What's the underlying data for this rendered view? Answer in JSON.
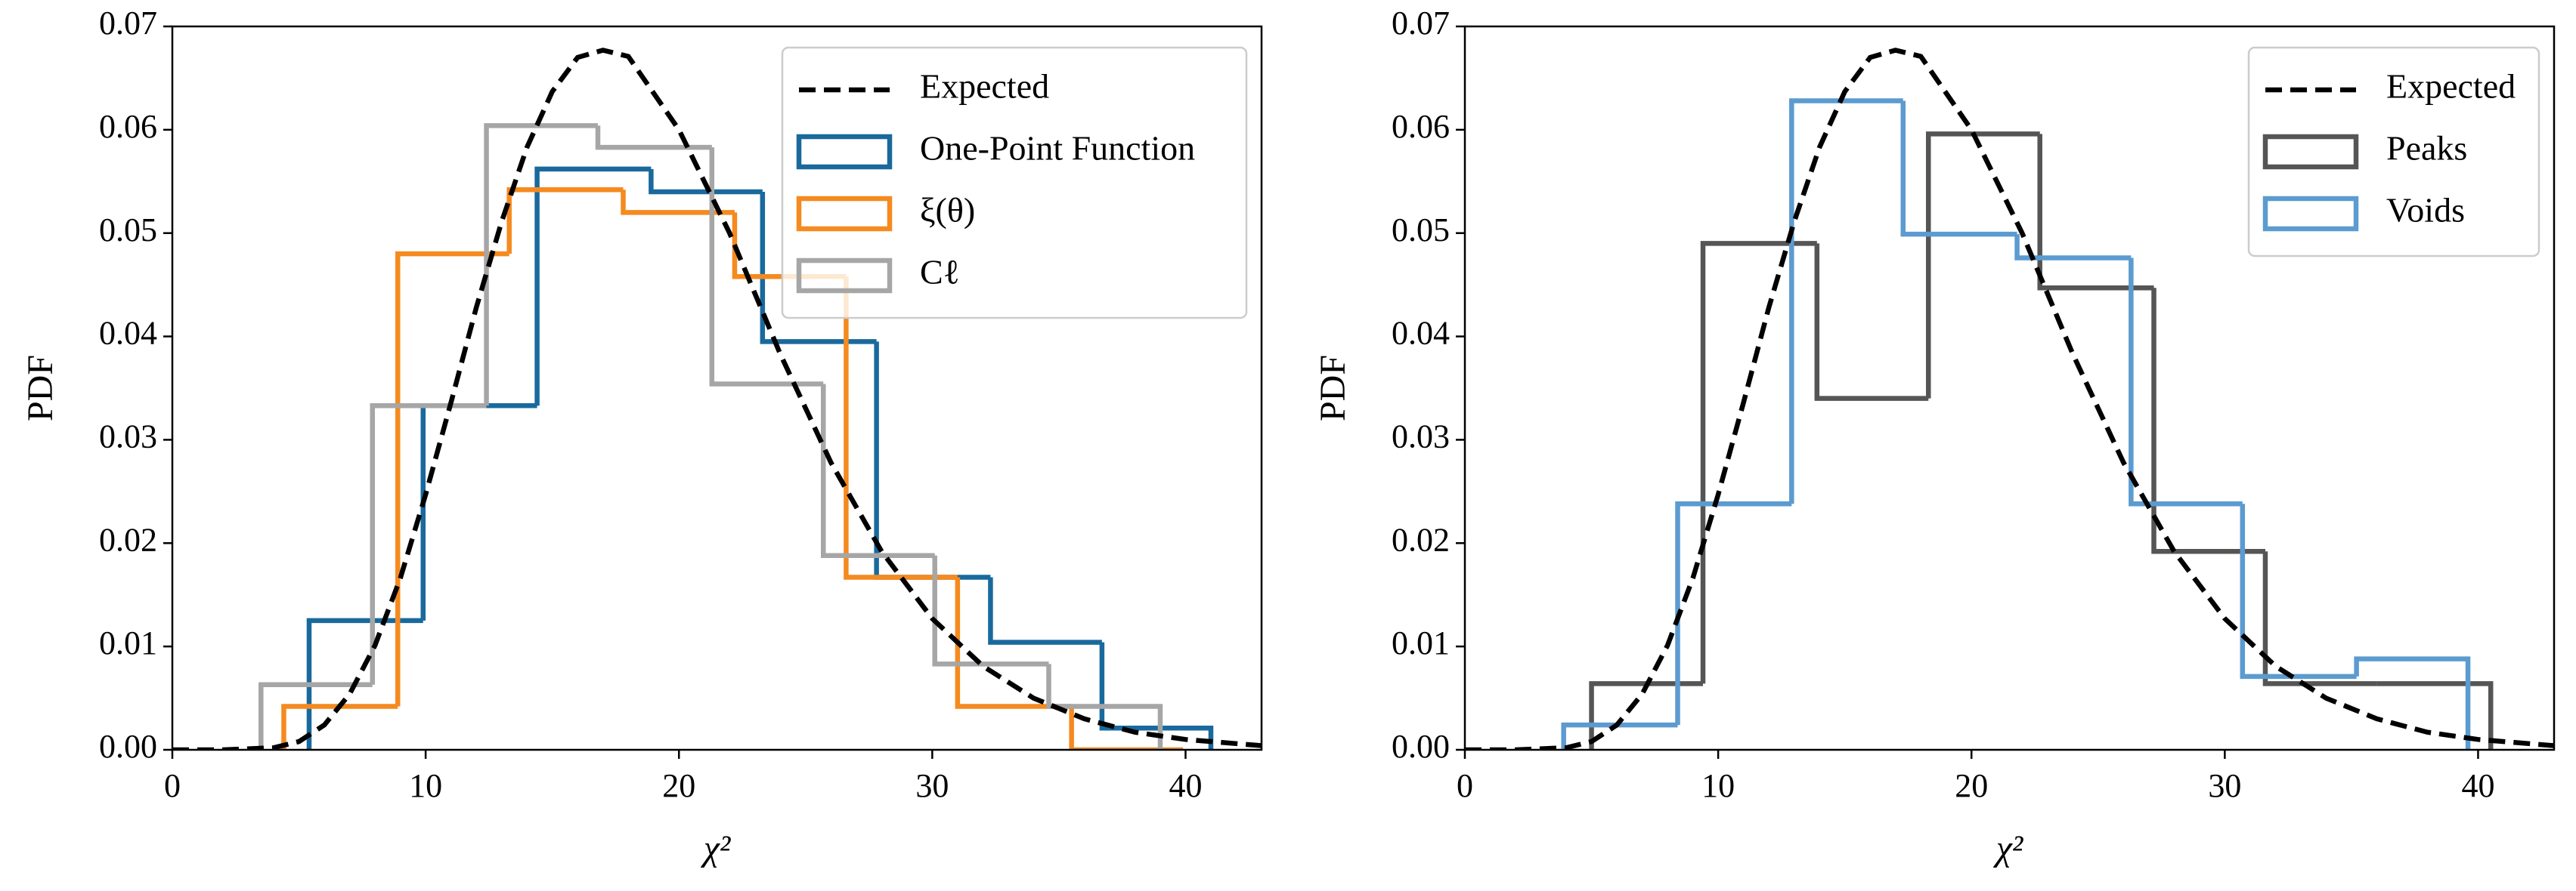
{
  "chart_data": [
    {
      "type": "histogram",
      "xlabel": "χ²",
      "ylabel": "PDF",
      "xlim": [
        0,
        43
      ],
      "ylim": [
        0,
        0.07
      ],
      "xticks": [
        0,
        10,
        20,
        30,
        40
      ],
      "yticks": [
        {
          "value": 0,
          "label": "0.00"
        },
        {
          "value": 0.01,
          "label": "0.01"
        },
        {
          "value": 0.02,
          "label": "0.02"
        },
        {
          "value": 0.03,
          "label": "0.03"
        },
        {
          "value": 0.04,
          "label": "0.04"
        },
        {
          "value": 0.05,
          "label": "0.05"
        },
        {
          "value": 0.06,
          "label": "0.06"
        },
        {
          "value": 0.07,
          "label": "0.07"
        }
      ],
      "legend": "upper right",
      "expected": {
        "name": "Expected",
        "color": "#000000",
        "x": [
          0,
          2,
          4,
          5,
          6,
          7,
          8,
          9,
          10,
          11,
          12,
          13,
          14,
          15,
          16,
          17,
          18,
          20,
          22,
          24,
          26,
          28,
          30,
          32,
          34,
          36,
          38,
          40,
          43
        ],
        "values": [
          0,
          0,
          0.0002,
          0.0008,
          0.0024,
          0.0054,
          0.0101,
          0.0166,
          0.0247,
          0.0336,
          0.0428,
          0.0511,
          0.0583,
          0.0637,
          0.067,
          0.0677,
          0.0671,
          0.06,
          0.05,
          0.0383,
          0.0278,
          0.0192,
          0.0127,
          0.0081,
          0.005,
          0.003,
          0.0017,
          0.001,
          0.0004
        ]
      },
      "series": [
        {
          "name": "One-Point Function",
          "color": "#19699d",
          "bins": [
            5.4,
            9.9,
            14.4,
            18.9,
            23.3,
            27.8,
            32.3,
            36.7,
            41.0
          ],
          "values": [
            0.0125,
            0.0333,
            0.0562,
            0.054,
            0.0395,
            0.0167,
            0.0104,
            0.0021
          ]
        },
        {
          "name": "ξ(θ)",
          "color": "#f58a1f",
          "bins": [
            4.4,
            8.9,
            13.3,
            17.8,
            22.2,
            26.6,
            31.0,
            35.5,
            39.9
          ],
          "values": [
            0.0042,
            0.048,
            0.0542,
            0.052,
            0.0458,
            0.0167,
            0.0042,
            0
          ]
        },
        {
          "name": "Cℓ",
          "color": "#a6a6a6",
          "bins": [
            3.5,
            7.9,
            12.4,
            16.8,
            21.3,
            25.7,
            30.1,
            34.6,
            39.0
          ],
          "values": [
            0.0063,
            0.0333,
            0.0604,
            0.0583,
            0.0354,
            0.0188,
            0.0083,
            0.0042
          ]
        }
      ]
    },
    {
      "type": "histogram",
      "xlabel": "χ²",
      "ylabel": "PDF",
      "xlim": [
        0,
        43
      ],
      "ylim": [
        0,
        0.07
      ],
      "xticks": [
        0,
        10,
        20,
        30,
        40
      ],
      "yticks": [
        {
          "value": 0,
          "label": "0.00"
        },
        {
          "value": 0.01,
          "label": "0.01"
        },
        {
          "value": 0.02,
          "label": "0.02"
        },
        {
          "value": 0.03,
          "label": "0.03"
        },
        {
          "value": 0.04,
          "label": "0.04"
        },
        {
          "value": 0.05,
          "label": "0.05"
        },
        {
          "value": 0.06,
          "label": "0.06"
        },
        {
          "value": 0.07,
          "label": "0.07"
        }
      ],
      "legend": "upper right",
      "expected": {
        "name": "Expected",
        "color": "#000000",
        "x": [
          0,
          2,
          4,
          5,
          6,
          7,
          8,
          9,
          10,
          11,
          12,
          13,
          14,
          15,
          16,
          17,
          18,
          20,
          22,
          24,
          26,
          28,
          30,
          32,
          34,
          36,
          38,
          40,
          43
        ],
        "values": [
          0,
          0,
          0.0002,
          0.0008,
          0.0024,
          0.0054,
          0.0101,
          0.0166,
          0.0247,
          0.0336,
          0.0428,
          0.0511,
          0.0583,
          0.0637,
          0.067,
          0.0677,
          0.0671,
          0.06,
          0.05,
          0.0383,
          0.0278,
          0.0192,
          0.0127,
          0.0081,
          0.005,
          0.003,
          0.0017,
          0.001,
          0.0004
        ]
      },
      "series": [
        {
          "name": "Peaks",
          "color": "#555555",
          "bins": [
            5.0,
            9.4,
            13.9,
            18.3,
            22.7,
            27.2,
            31.6,
            36.0,
            40.5
          ],
          "values": [
            0.0064,
            0.049,
            0.034,
            0.0596,
            0.0447,
            0.0192,
            0.0064,
            0.0064
          ]
        },
        {
          "name": "Voids",
          "color": "#5b9bd0",
          "bins": [
            3.9,
            8.4,
            12.9,
            17.3,
            21.8,
            26.3,
            30.7,
            35.2,
            39.6
          ],
          "values": [
            0.0024,
            0.0238,
            0.0628,
            0.0499,
            0.0476,
            0.0238,
            0.0071,
            0.0088
          ]
        }
      ]
    }
  ]
}
